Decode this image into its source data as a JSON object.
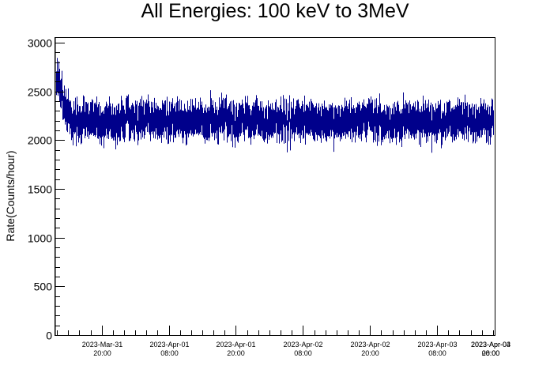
{
  "chart_data": {
    "type": "line",
    "title": "All Energies:  100 keV to 3MeV",
    "xlabel": "",
    "ylabel": "Rate(Counts/hour)",
    "ylim": [
      0,
      3050
    ],
    "xlim_hours": [
      -12.3,
      66.3
    ],
    "yticks": [
      "0",
      "500",
      "1000",
      "1500",
      "2000",
      "2500",
      "3000"
    ],
    "xticks": [
      {
        "line1": "2023-Mar-31",
        "line2": "20:00"
      },
      {
        "line1": "2023-Apr-01",
        "line2": "08:00"
      },
      {
        "line1": "2023-Apr-01",
        "line2": "20:00"
      },
      {
        "line1": "2023-Apr-02",
        "line2": "08:00"
      },
      {
        "line1": "2023-Apr-02",
        "line2": "20:00"
      },
      {
        "line1": "2023-Apr-03",
        "line2": "08:00"
      },
      {
        "line1": "2023-Apr-03",
        "line2": "20:00"
      },
      {
        "line1": "2023-Apr-04",
        "line2": "08:00"
      }
    ],
    "grid": false,
    "legend": "none",
    "series": [
      {
        "style": "points with vertical error bars",
        "color": "#00008b",
        "mean_rate": 2200,
        "typical_error": 150,
        "initial_rate": 2650,
        "min_rate": 1800,
        "max_rate": 2900
      }
    ]
  }
}
